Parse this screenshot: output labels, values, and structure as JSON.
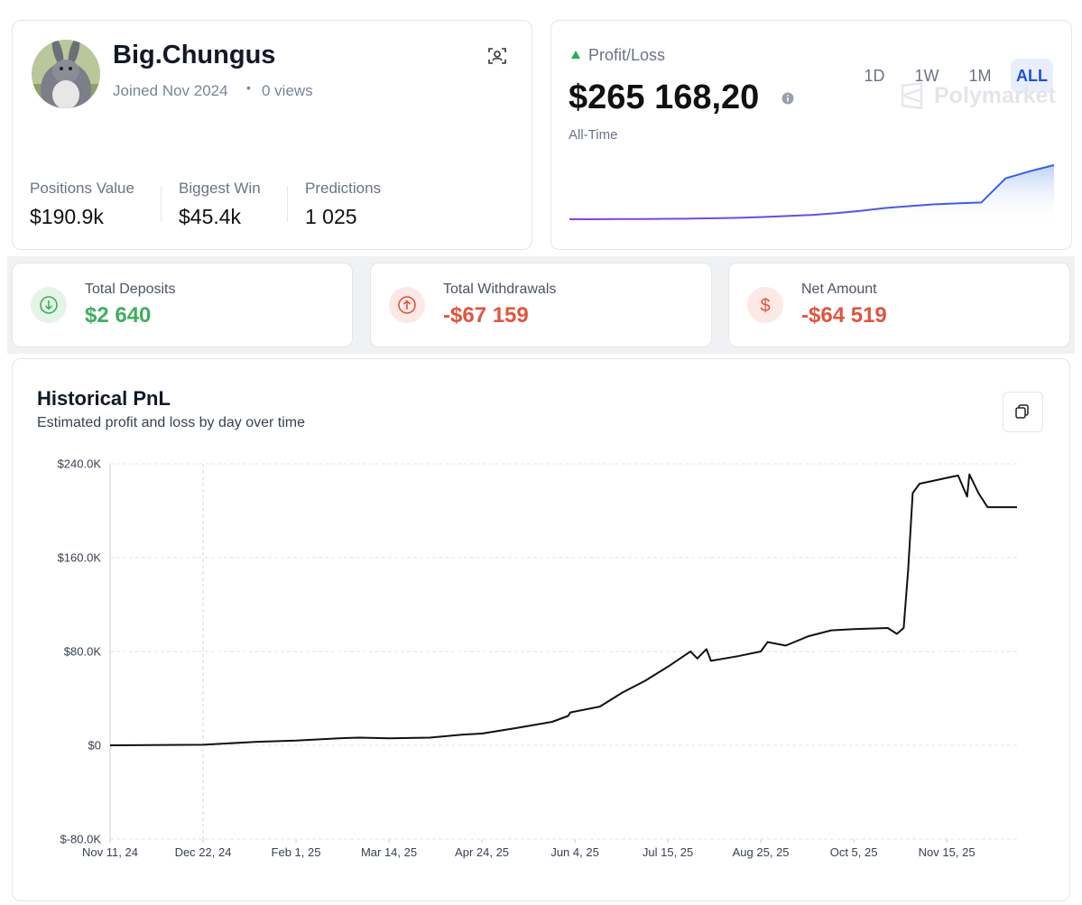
{
  "profile": {
    "name": "Big.Chungus",
    "joined": "Joined Nov 2024",
    "views": "0 views",
    "stats": [
      {
        "label": "Positions Value",
        "value": "$190.9k"
      },
      {
        "label": "Biggest Win",
        "value": "$45.4k"
      },
      {
        "label": "Predictions",
        "value": "1 025"
      }
    ]
  },
  "pnl_card": {
    "label": "Profit/Loss",
    "periods": [
      "1D",
      "1W",
      "1M",
      "ALL"
    ],
    "amount": "$265 168,20",
    "period_label": "All-Time",
    "brand": "Polymarket",
    "sparkline": [
      0,
      0,
      1000,
      1000,
      2000,
      3000,
      5000,
      7000,
      11000,
      16000,
      21000,
      30000,
      41000,
      55000,
      64000,
      73000,
      78000,
      82000,
      200000,
      235000,
      265168
    ]
  },
  "summary": [
    {
      "label": "Total Deposits",
      "value": "$2 640"
    },
    {
      "label": "Total Withdrawals",
      "value": "-$67 159"
    },
    {
      "label": "Net Amount",
      "value": "-$64 519"
    }
  ],
  "chart_data": {
    "type": "line",
    "title": "Historical PnL",
    "subtitle": "Estimated profit and loss by day over time",
    "color": "#111111",
    "x": [
      "2024-11-11",
      "2024-12-22",
      "2025-01-15",
      "2025-02-01",
      "2025-02-20",
      "2025-03-01",
      "2025-03-14",
      "2025-04-01",
      "2025-04-15",
      "2025-04-24",
      "2025-05-10",
      "2025-05-25",
      "2025-06-01",
      "2025-06-02",
      "2025-06-15",
      "2025-06-25",
      "2025-07-05",
      "2025-07-15",
      "2025-07-25",
      "2025-07-28",
      "2025-08-01",
      "2025-08-03",
      "2025-08-15",
      "2025-08-25",
      "2025-08-28",
      "2025-09-05",
      "2025-09-15",
      "2025-09-25",
      "2025-10-05",
      "2025-10-20",
      "2025-10-24",
      "2025-10-27",
      "2025-10-29",
      "2025-10-31",
      "2025-11-03",
      "2025-11-15",
      "2025-11-20",
      "2025-11-24",
      "2025-11-25",
      "2025-11-29",
      "2025-12-03",
      "2025-12-16"
    ],
    "values": [
      0,
      500,
      3000,
      4000,
      6000,
      6500,
      6000,
      6500,
      9000,
      10000,
      15000,
      20000,
      25000,
      28000,
      33000,
      45000,
      55000,
      67000,
      80000,
      74000,
      82000,
      72000,
      76000,
      80000,
      88000,
      85000,
      93000,
      98000,
      99000,
      100000,
      95000,
      100000,
      150000,
      215000,
      223000,
      228000,
      230000,
      212000,
      231000,
      215000,
      203000,
      203000
    ],
    "xlim": [
      "2024-11-11",
      "2025-12-16"
    ],
    "xticks": [
      {
        "value": "2024-11-11",
        "label": "Nov 11, 24"
      },
      {
        "value": "2024-12-22",
        "label": "Dec 22, 24"
      },
      {
        "value": "2025-02-01",
        "label": "Feb 1, 25"
      },
      {
        "value": "2025-03-14",
        "label": "Mar 14, 25"
      },
      {
        "value": "2025-04-24",
        "label": "Apr 24, 25"
      },
      {
        "value": "2025-06-04",
        "label": "Jun 4, 25"
      },
      {
        "value": "2025-07-15",
        "label": "Jul 15, 25"
      },
      {
        "value": "2025-08-25",
        "label": "Aug 25, 25"
      },
      {
        "value": "2025-10-05",
        "label": "Oct 5, 25"
      },
      {
        "value": "2025-11-15",
        "label": "Nov 15, 25"
      }
    ],
    "ylim": [
      -80000,
      240000
    ],
    "yticks": [
      {
        "value": -80000,
        "label": "$-80.0K"
      },
      {
        "value": 0,
        "label": "$0"
      },
      {
        "value": 80000,
        "label": "$80.0K"
      },
      {
        "value": 160000,
        "label": "$160.0K"
      },
      {
        "value": 240000,
        "label": "$240.0K"
      }
    ],
    "grid": true
  }
}
